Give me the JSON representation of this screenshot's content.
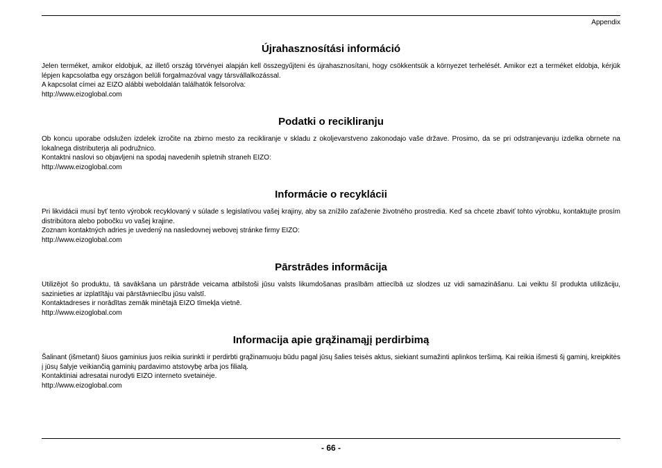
{
  "header": {
    "label": "Appendix"
  },
  "sections": [
    {
      "title": "Újrahasznosítási információ",
      "para": "Jelen terméket, amikor eldobjuk, az illető ország törvényei alapján kell összegyűjteni és újrahasznosítani, hogy csökkentsük a környezet terhelését. Amikor ezt a terméket eldobja, kérjük lépjen kapcsolatba egy országon belüli forgalmazóval vagy társvállalkozással.",
      "contact": "A kapcsolat címei az EIZO alábbi weboldalán találhatók felsorolva:",
      "url": "http://www.eizoglobal.com"
    },
    {
      "title": "Podatki o recikliranju",
      "para": "Ob koncu uporabe odslužen izdelek izročite na zbirno mesto za recikliranje v skladu z okoljevarstveno zakonodajo vaše države. Prosimo, da se pri odstranjevanju izdelka obrnete na lokalnega distributerja ali podružnico.",
      "contact": "Kontaktni naslovi so objavljeni na spodaj navedenih spletnih straneh EIZO:",
      "url": "http://www.eizoglobal.com"
    },
    {
      "title": "Informácie o recyklácii",
      "para": "Pri likvidácii musí byť tento výrobok recyklovaný v súlade s legislatívou vašej krajiny, aby sa znížilo zaťaženie životného prostredia. Keď sa chcete zbaviť tohto výrobku, kontaktujte prosím distribútora alebo pobočku vo vašej krajine.",
      "contact": "Zoznam kontaktných adries je uvedený na nasledovnej webovej stránke firmy EIZO:",
      "url": "http://www.eizoglobal.com"
    },
    {
      "title": "Pārstrādes informācija",
      "para": "Utilizējot šo produktu, tā savākšana un pārstrāde veicama atbilstoši jūsu valsts likumdošanas prasībām attiecībā uz slodzes uz vidi samazināšanu. Lai veiktu šī produkta utilizāciju, sazinieties ar izplatītāju vai pārstāvniecību jūsu valstī.",
      "contact": "Kontaktadreses ir norādītas zemāk minētajā EIZO tīmekļa vietnē.",
      "url": "http://www.eizoglobal.com"
    },
    {
      "title": "Informacija apie grąžinamąjį perdirbimą",
      "para": "Šalinant (išmetant) šiuos gaminius juos reikia surinkti ir perdirbti grąžinamuoju būdu pagal jūsų šalies teisės aktus, siekiant sumažinti aplinkos teršimą. Kai reikia išmesti šį gaminį, kreipkitės į jūsų šalyje veikiančią gaminių pardavimo atstovybę arba jos filialą.",
      "contact": "Kontaktiniai adresatai nurodyti EIZO interneto svetainėje.",
      "url": "http://www.eizoglobal.com"
    }
  ],
  "footer": {
    "page": "- 66 -"
  }
}
